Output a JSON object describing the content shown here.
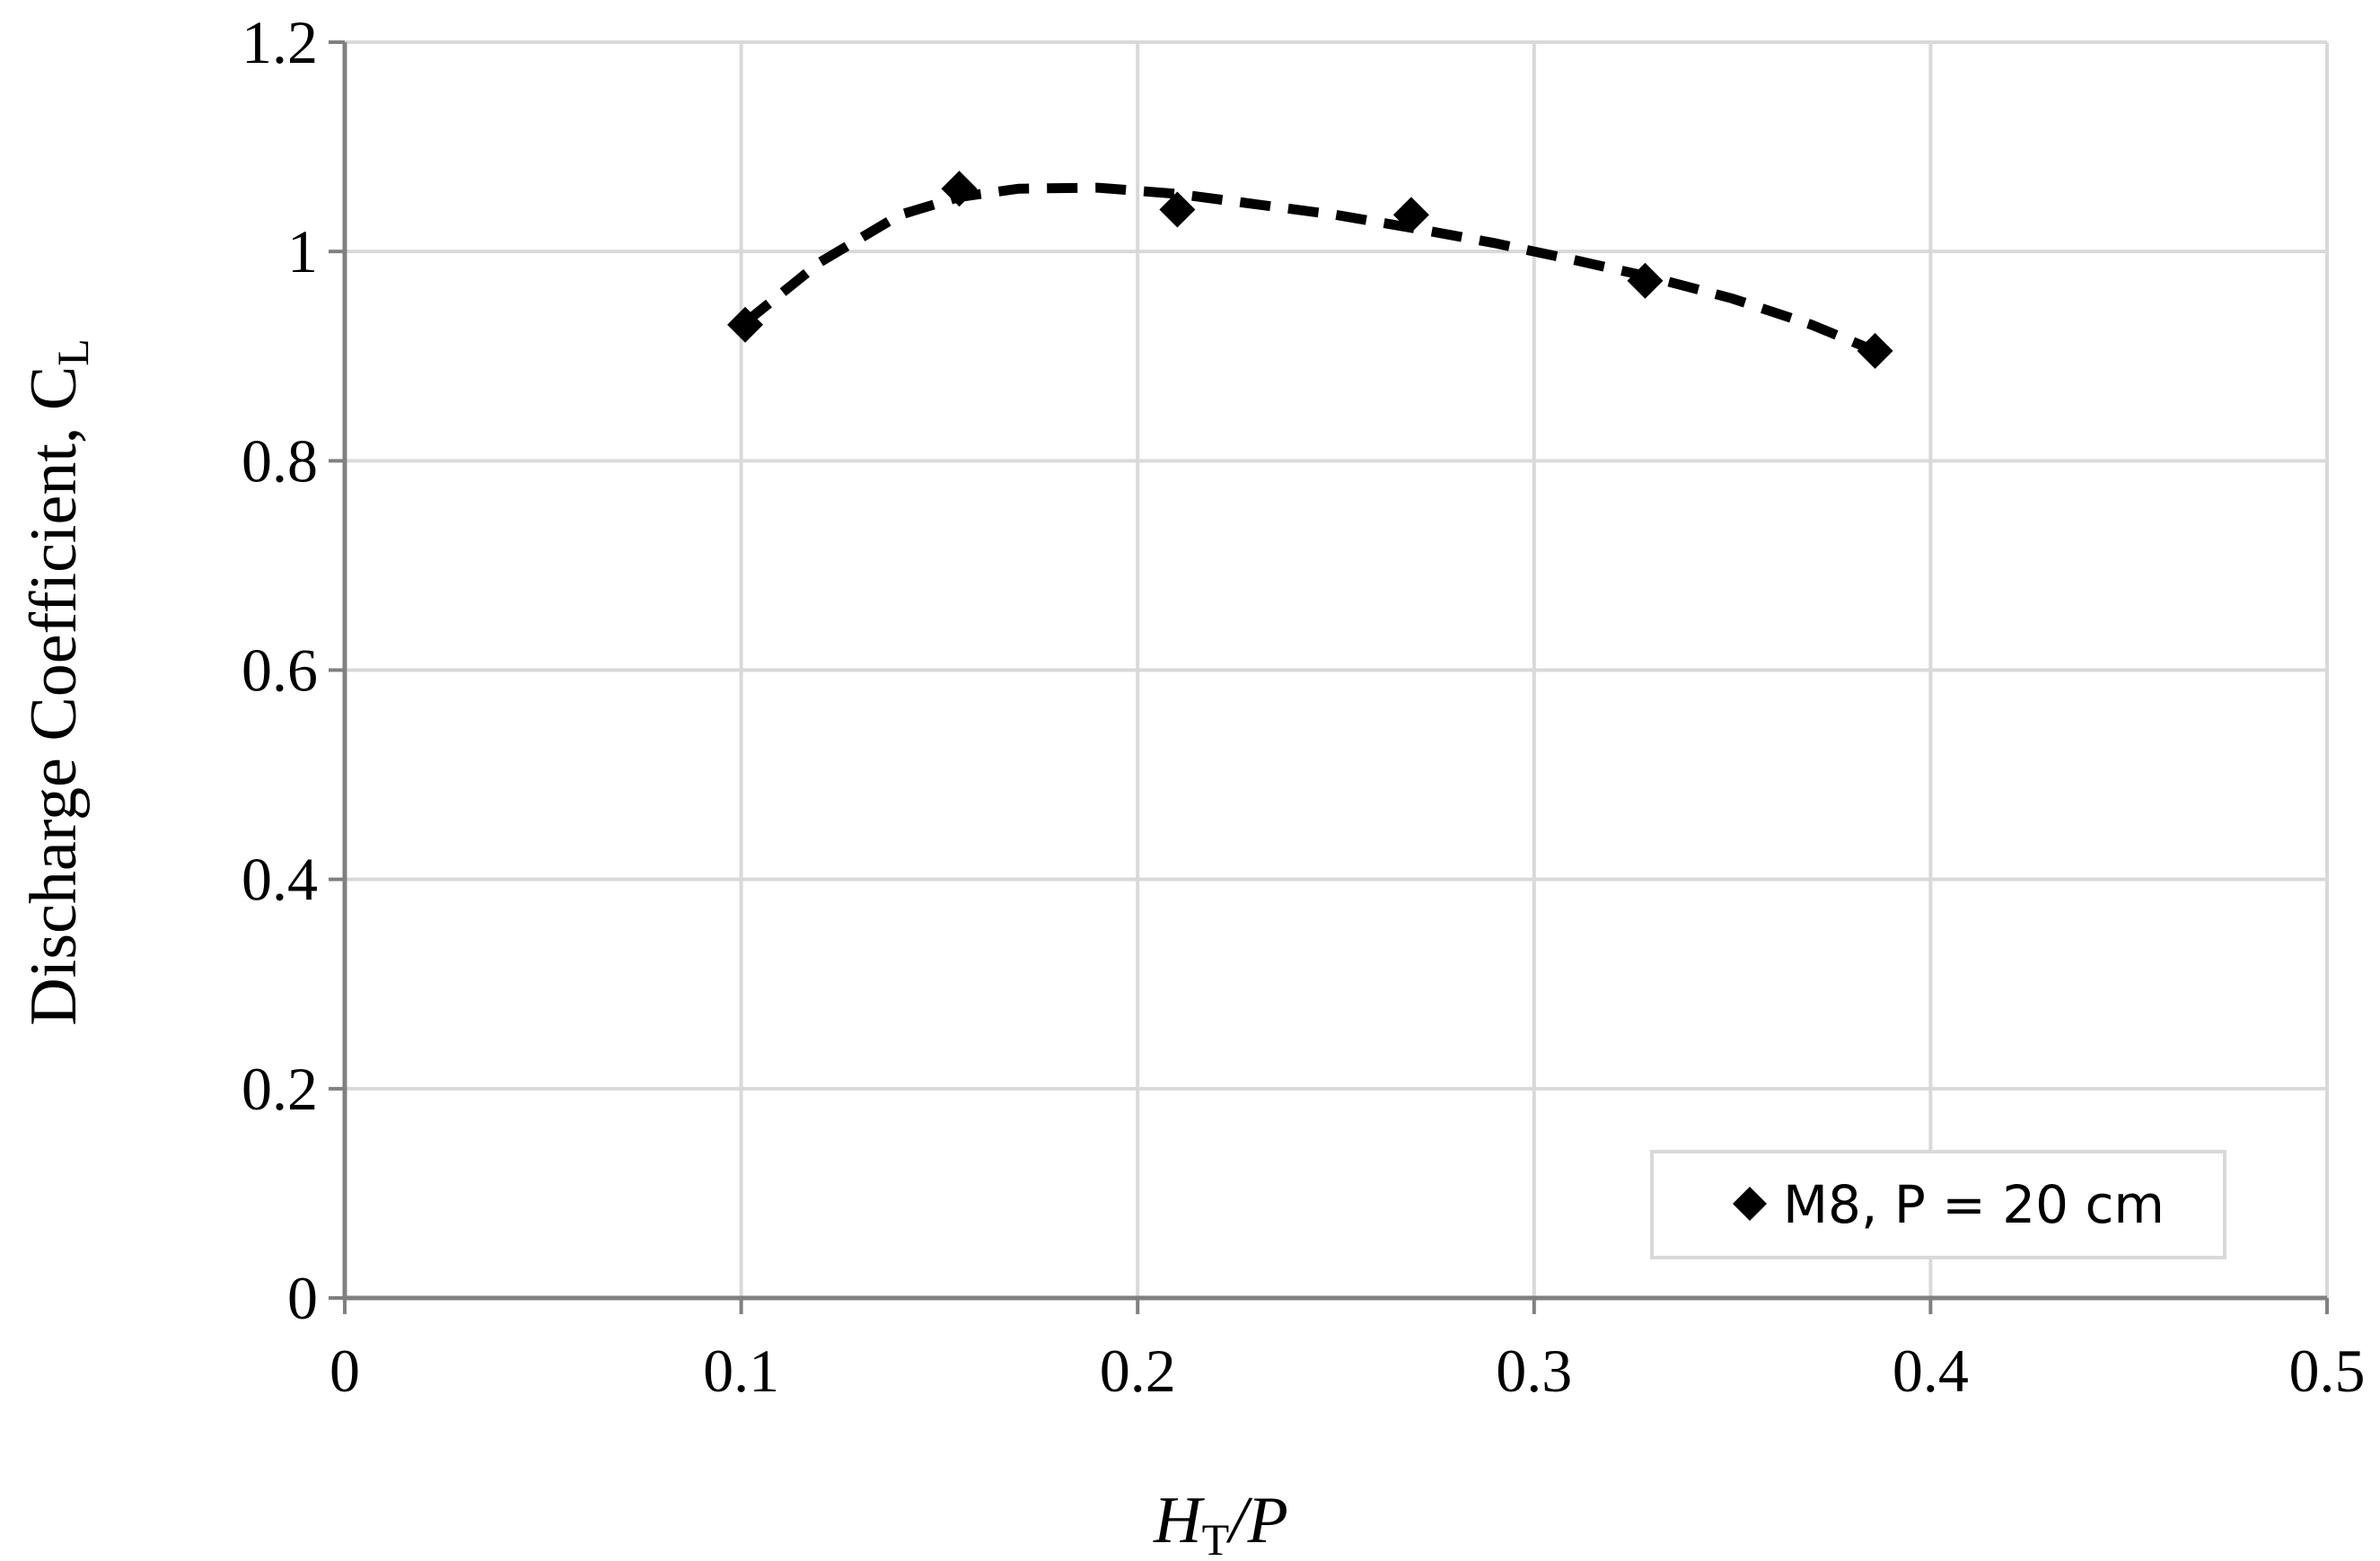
{
  "chart_data": {
    "type": "scatter",
    "xlim": [
      0,
      0.5
    ],
    "ylim": [
      0,
      1.2
    ],
    "x_ticks": [
      "0",
      "0.1",
      "0.2",
      "0.3",
      "0.4",
      "0.5"
    ],
    "y_ticks": [
      "0",
      "0.2",
      "0.4",
      "0.6",
      "0.8",
      "1",
      "1.2"
    ],
    "grid": true,
    "xlabel": {
      "main": "H",
      "sub": "T",
      "rest": "/P"
    },
    "ylabel": {
      "main": "Discharge Coefficient, C",
      "sub": "L"
    },
    "legend_position": "bottom-right",
    "series": [
      {
        "name": "M8, P = 20 cm",
        "marker": "diamond",
        "color": "#000000",
        "x": [
          0.101,
          0.155,
          0.21,
          0.269,
          0.328,
          0.386
        ],
        "y": [
          0.93,
          1.06,
          1.04,
          1.035,
          0.972,
          0.905
        ]
      }
    ],
    "trendline": {
      "style": "dashed",
      "color": "#000000",
      "x": [
        0.101,
        0.12,
        0.14,
        0.155,
        0.17,
        0.19,
        0.21,
        0.23,
        0.25,
        0.27,
        0.29,
        0.31,
        0.33,
        0.35,
        0.37,
        0.386
      ],
      "y": [
        0.932,
        0.99,
        1.035,
        1.052,
        1.06,
        1.061,
        1.055,
        1.045,
        1.035,
        1.022,
        1.008,
        0.992,
        0.975,
        0.955,
        0.93,
        0.905
      ]
    }
  },
  "colors": {
    "grid": "#d9d9d9",
    "axis": "#808080",
    "marker": "#000000",
    "legend_border": "#d9d9d9"
  }
}
